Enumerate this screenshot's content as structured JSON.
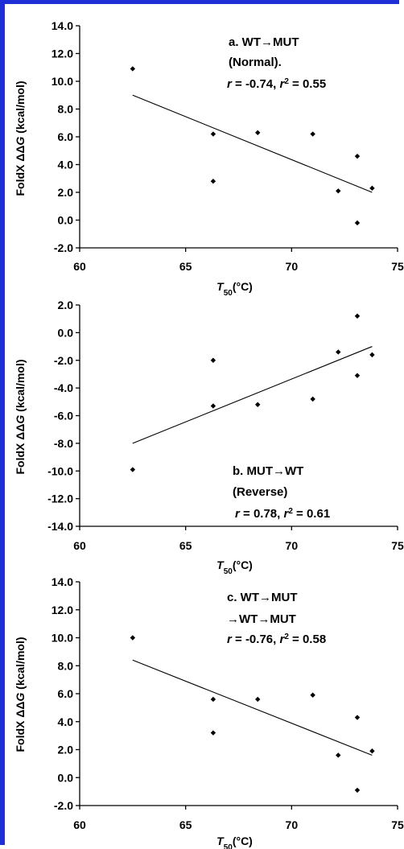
{
  "chart_data": [
    {
      "type": "scatter",
      "panel": "a",
      "annotation": [
        "a. WT→MUT",
        "(Normal).",
        "r = -0.74, r² = 0.55"
      ],
      "xlabel": "T50(°C)",
      "ylabel": "FoldX ΔΔG (kcal/mol)",
      "xlim": [
        60,
        75
      ],
      "ylim": [
        -2.0,
        14.0
      ],
      "xticks": [
        "60",
        "65",
        "70",
        "75"
      ],
      "yticks": [
        "-2.0",
        "0.0",
        "2.0",
        "4.0",
        "6.0",
        "8.0",
        "10.0",
        "12.0",
        "14.0"
      ],
      "points": [
        {
          "x": 62.5,
          "y": 10.9
        },
        {
          "x": 66.3,
          "y": 6.2
        },
        {
          "x": 66.3,
          "y": 2.8
        },
        {
          "x": 68.4,
          "y": 6.3
        },
        {
          "x": 71.0,
          "y": 6.2
        },
        {
          "x": 72.2,
          "y": 2.1
        },
        {
          "x": 73.1,
          "y": 4.6
        },
        {
          "x": 73.1,
          "y": -0.2
        },
        {
          "x": 73.8,
          "y": 2.3
        }
      ],
      "trendline": {
        "x": [
          62.5,
          73.8
        ],
        "y": [
          9.0,
          2.0
        ]
      }
    },
    {
      "type": "scatter",
      "panel": "b",
      "annotation": [
        "b. MUT→WT",
        "(Reverse)",
        "r = 0.78, r² = 0.61"
      ],
      "xlabel": "T50(°C)",
      "ylabel": "FoldX ΔΔG (kcal/mol)",
      "xlim": [
        60,
        75
      ],
      "ylim": [
        -14.0,
        2.0
      ],
      "xticks": [
        "60",
        "65",
        "70",
        "75"
      ],
      "yticks": [
        "-14.0",
        "-12.0",
        "-10.0",
        "-8.0",
        "-6.0",
        "-4.0",
        "-2.0",
        "0.0",
        "2.0"
      ],
      "points": [
        {
          "x": 62.5,
          "y": -9.9
        },
        {
          "x": 66.3,
          "y": -2.0
        },
        {
          "x": 66.3,
          "y": -5.3
        },
        {
          "x": 68.4,
          "y": -5.2
        },
        {
          "x": 71.0,
          "y": -4.8
        },
        {
          "x": 72.2,
          "y": -1.4
        },
        {
          "x": 73.1,
          "y": 1.2
        },
        {
          "x": 73.1,
          "y": -3.1
        },
        {
          "x": 73.8,
          "y": -1.6
        }
      ],
      "trendline": {
        "x": [
          62.5,
          73.8
        ],
        "y": [
          -8.0,
          -1.0
        ]
      }
    },
    {
      "type": "scatter",
      "panel": "c",
      "annotation": [
        "c. WT→MUT",
        "→WT→MUT",
        "r = -0.76, r² = 0.58"
      ],
      "xlabel": "T50(°C)",
      "ylabel": "FoldX ΔΔG (kcal/mol)",
      "xlim": [
        60,
        75
      ],
      "ylim": [
        -2.0,
        14.0
      ],
      "xticks": [
        "60",
        "65",
        "70",
        "75"
      ],
      "yticks": [
        "-2.0",
        "0.0",
        "2.0",
        "4.0",
        "6.0",
        "8.0",
        "10.0",
        "12.0",
        "14.0"
      ],
      "points": [
        {
          "x": 62.5,
          "y": 10.0
        },
        {
          "x": 66.3,
          "y": 5.6
        },
        {
          "x": 66.3,
          "y": 3.2
        },
        {
          "x": 68.4,
          "y": 5.6
        },
        {
          "x": 71.0,
          "y": 5.9
        },
        {
          "x": 72.2,
          "y": 1.6
        },
        {
          "x": 73.1,
          "y": 4.3
        },
        {
          "x": 73.1,
          "y": -0.9
        },
        {
          "x": 73.8,
          "y": 1.9
        }
      ],
      "trendline": {
        "x": [
          62.5,
          73.8
        ],
        "y": [
          8.4,
          1.6
        ]
      }
    }
  ]
}
